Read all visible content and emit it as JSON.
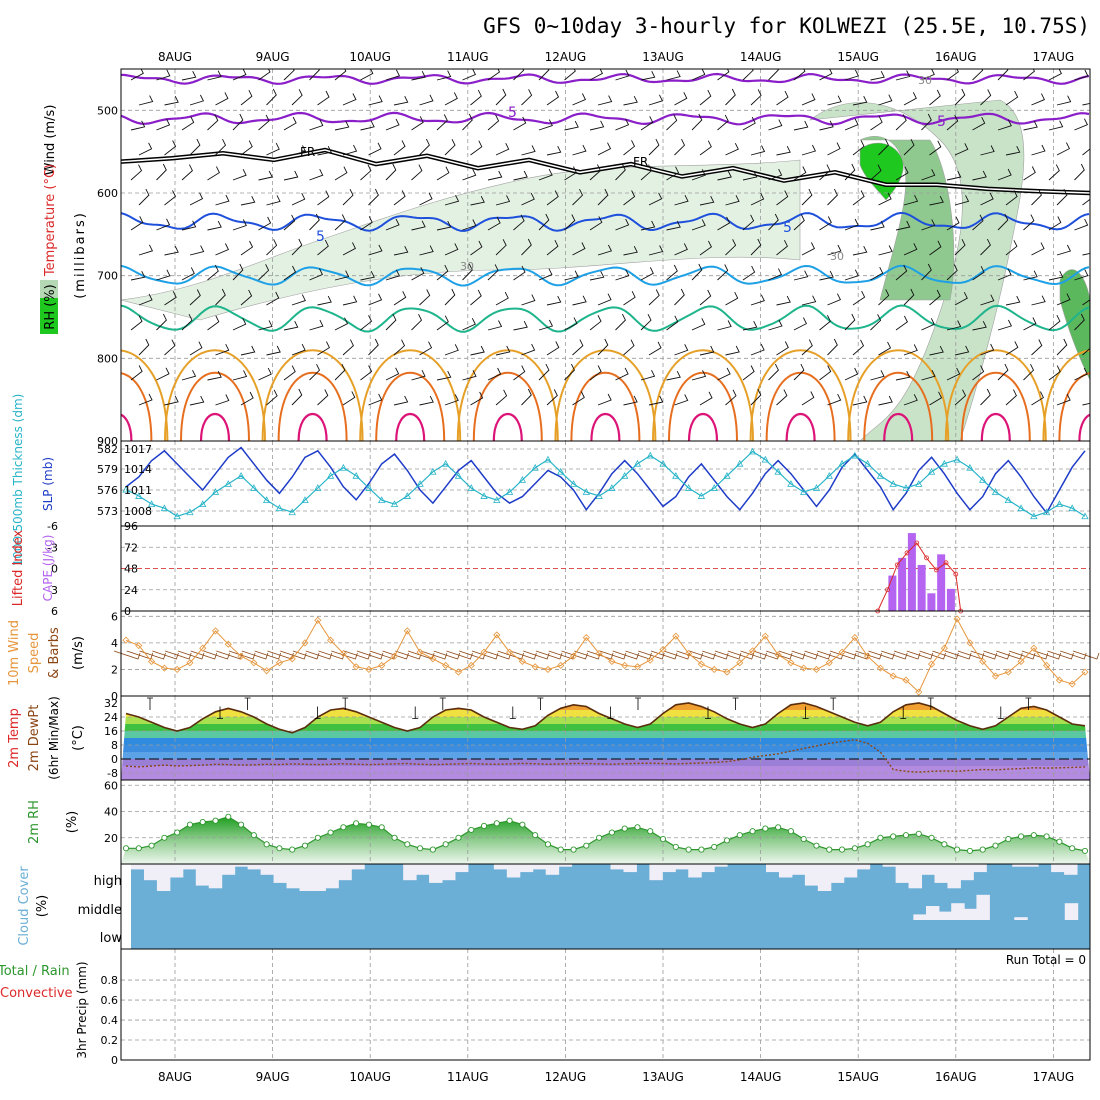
{
  "title": "GFS 0~10day 3-hourly for KOLWEZI (25.5E, 10.75S)",
  "dates": [
    "8AUG",
    "9AUG",
    "10AUG",
    "11AUG",
    "12AUG",
    "13AUG",
    "14AUG",
    "15AUG",
    "16AUG",
    "17AUG"
  ],
  "colors": {
    "rh_green": "#1ec81e",
    "wind_purple": "#8a1ec8",
    "temp_blue": "#1e50dc",
    "temp_cyan": "#1ea0e6",
    "temp_teal": "#1eb48c",
    "temp_orange": "#e6a028",
    "temp_darkorange": "#e66e1e",
    "temp_magenta": "#dc1478",
    "slp_blue": "#1e3cc8",
    "thick_cyan": "#28b4c8",
    "cape_purple": "#b464f0",
    "li_red": "#dc2828",
    "wind10_orange": "#e6963c",
    "rh2m_green": "#2d962d",
    "cloud_blue": "#6baed6",
    "cloud_white": "#f0eef6"
  },
  "labels": {
    "upper_wind": "Wind (m/s)",
    "upper_temp": "Temperature (°C)",
    "upper_rh": "RH (%)",
    "upper_mb": "(millibars)",
    "thick": "1000-500mb Thickness (dm)",
    "slp": "SLP (mb)",
    "li": "Lifted Index",
    "cape": "CAPE (J/kg)",
    "wind10_a": "10m Wind",
    "wind10_b": "Speed",
    "wind10_c": "& Barbs",
    "wind10_d": "(m/s)",
    "temp2m_a": "2m Temp",
    "temp2m_b": "2m DewPt",
    "temp2m_c": "(6hr Min/Max)",
    "temp2m_d": "(°C)",
    "rh2m_a": "2m RH",
    "rh2m_b": "(%)",
    "cloud_a": "Cloud Cover",
    "cloud_b": "(%)",
    "cloud_high": "high",
    "cloud_middle": "middle",
    "cloud_low": "low",
    "precip_a": "Total / Rain",
    "precip_b": "Convective",
    "precip_c": "3hr Precip (mm)",
    "run_total": "Run Total = 0",
    "contour_fr": "FR",
    "contour_5": "5",
    "contour_30": "30"
  },
  "chart_data": {
    "type": "line",
    "x_dates": [
      "8AUG",
      "9AUG",
      "10AUG",
      "11AUG",
      "12AUG",
      "13AUG",
      "14AUG",
      "15AUG",
      "16AUG",
      "17AUG"
    ],
    "panels": [
      {
        "name": "upper_air",
        "y_ticks": [
          "500",
          "600",
          "700",
          "800",
          "900"
        ],
        "ylim": [
          450,
          900
        ],
        "freezing_level_mb": [
          562,
          558,
          552,
          560,
          548,
          565,
          555,
          570,
          560,
          575,
          565,
          580,
          570,
          585,
          575,
          590,
          590,
          595,
          598,
          600
        ]
      },
      {
        "name": "slp_thickness",
        "y_ticks_slp": [
          "1017",
          "1014",
          "1011",
          "1008"
        ],
        "y_ticks_thickness": [
          "582",
          "579",
          "576",
          "573"
        ],
        "slp": [
          1011.5,
          1013,
          1015.5,
          1017,
          1015,
          1013,
          1011,
          1013.5,
          1016,
          1017.5,
          1015,
          1012.5,
          1010.5,
          1013,
          1016,
          1017,
          1014.5,
          1011.5,
          1009.5,
          1012,
          1015,
          1016.5,
          1014,
          1011,
          1009,
          1011.5,
          1014,
          1015.5,
          1013,
          1010.5,
          1009,
          1010,
          1012,
          1014,
          1013,
          1011,
          1008,
          1010.5,
          1013.5,
          1015.5,
          1013.5,
          1011,
          1008.5,
          1010,
          1013,
          1015,
          1012.5,
          1010,
          1008,
          1010.5,
          1013.5,
          1015.5,
          1013.5,
          1011,
          1008.5,
          1011,
          1014.5,
          1016.5,
          1014,
          1011.5,
          1008,
          1010.5,
          1014,
          1016,
          1013.5,
          1010.5,
          1008,
          1010,
          1013.5,
          1015.5,
          1013,
          1010,
          1007.5,
          1011,
          1014.5,
          1017
        ],
        "thickness": [
          576.8,
          576,
          575,
          574.5,
          573.5,
          574,
          575,
          576.5,
          577.5,
          578.5,
          577,
          575.5,
          574.5,
          574,
          575.5,
          577,
          578.5,
          579.5,
          578.5,
          577,
          575.5,
          575,
          576,
          577.5,
          579,
          580,
          578.5,
          577,
          576,
          575.5,
          576.5,
          578,
          579.5,
          580.5,
          579,
          577.5,
          576.5,
          576,
          577,
          578.5,
          580,
          581,
          580,
          578.5,
          577,
          576,
          577,
          578.5,
          580,
          581.5,
          580.5,
          579,
          577.5,
          576.5,
          577,
          578.5,
          580,
          581,
          580,
          578.5,
          577.5,
          577,
          577.5,
          579,
          580,
          580.5,
          579.5,
          578,
          576.5,
          575.5,
          574.5,
          573.5,
          574,
          575,
          574.5,
          573.5
        ]
      },
      {
        "name": "cape_li",
        "y_ticks_cape": [
          "96",
          "72",
          "48",
          "24",
          "0"
        ],
        "y_ticks_li": [
          "-6",
          "-3",
          "0",
          "3",
          "6"
        ],
        "cape_bars": [
          {
            "x": 7.35,
            "v": 40
          },
          {
            "x": 7.45,
            "v": 60
          },
          {
            "x": 7.55,
            "v": 88
          },
          {
            "x": 7.65,
            "v": 52
          },
          {
            "x": 7.75,
            "v": 20
          },
          {
            "x": 7.85,
            "v": 64
          },
          {
            "x": 7.95,
            "v": 25
          }
        ],
        "li_points": [
          {
            "x": 7.2,
            "v": 6
          },
          {
            "x": 7.3,
            "v": 3
          },
          {
            "x": 7.4,
            "v": -0.5
          },
          {
            "x": 7.5,
            "v": -2.2
          },
          {
            "x": 7.6,
            "v": -3.6
          },
          {
            "x": 7.7,
            "v": -1.5
          },
          {
            "x": 7.8,
            "v": 0.2
          },
          {
            "x": 7.9,
            "v": -0.8
          },
          {
            "x": 8.0,
            "v": 0.8
          },
          {
            "x": 8.05,
            "v": 6
          }
        ]
      },
      {
        "name": "wind10m",
        "y_ticks": [
          "6",
          "4",
          "2",
          "0"
        ],
        "ylim": [
          0,
          6
        ],
        "speed": [
          4.2,
          3.8,
          2.6,
          2.1,
          2,
          2.5,
          3.6,
          4.9,
          3.9,
          3,
          2.5,
          1.9,
          2.5,
          2.8,
          4,
          5.7,
          4.2,
          3.2,
          2.2,
          2,
          2.3,
          3,
          4.9,
          3.3,
          2.8,
          2.3,
          1.8,
          2.3,
          3.3,
          4.6,
          3.3,
          2.6,
          2.2,
          2,
          2.3,
          3,
          4.4,
          3.2,
          2.6,
          2.3,
          2.2,
          2.7,
          3.5,
          4.5,
          3.2,
          2.4,
          2,
          1.8,
          2.5,
          3.4,
          4.5,
          3.1,
          2.5,
          2.1,
          2,
          2.5,
          3.3,
          4.4,
          3,
          2.1,
          1.5,
          1.2,
          0.3,
          2.4,
          3.6,
          5.8,
          4,
          2.6,
          1.5,
          1.8,
          2.6,
          3.6,
          2.3,
          1.2,
          0.9,
          1.8
        ]
      },
      {
        "name": "temp2m",
        "y_ticks": [
          "32",
          "24",
          "16",
          "8",
          "0",
          "-8"
        ],
        "ylim": [
          -12,
          36
        ],
        "temp": [
          26,
          24,
          21,
          18,
          16,
          18,
          23,
          27,
          29,
          27,
          24,
          20,
          17,
          15,
          18,
          24,
          28,
          29,
          27,
          24,
          21,
          18,
          16,
          18,
          24,
          28,
          29,
          28,
          24,
          21,
          18,
          17,
          19,
          25,
          29,
          31,
          30,
          26,
          23,
          20,
          18,
          20,
          26,
          31,
          32,
          30,
          27,
          23,
          20,
          18,
          20,
          26,
          31,
          32,
          30,
          27,
          24,
          21,
          19,
          21,
          27,
          31,
          32,
          30,
          26,
          22,
          19,
          17,
          19,
          24,
          29,
          30,
          28,
          24,
          20,
          19
        ],
        "dewpoint": [
          -4,
          -4.5,
          -4,
          -3.5,
          -4,
          -3.8,
          -3.5,
          -3,
          -3.2,
          -3.5,
          -3.3,
          -3,
          -3.2,
          -2.8,
          -3,
          -3.2,
          -3,
          -2.7,
          -3,
          -3.2,
          -3,
          -2.8,
          -2.6,
          -3,
          -3.2,
          -3,
          -2.8,
          -2.6,
          -2.9,
          -3,
          -2.8,
          -2.5,
          -2.7,
          -3,
          -2.8,
          -2.6,
          -2.5,
          -2.8,
          -3,
          -2.7,
          -2.5,
          -2.4,
          -2.6,
          -2.8,
          -2.5,
          -2.3,
          -2,
          -1.5,
          -0.5,
          1,
          2,
          3,
          4.5,
          6,
          7.5,
          9,
          10,
          11,
          9,
          4,
          -6,
          -7,
          -7.5,
          -7,
          -6.8,
          -7,
          -6.5,
          -6,
          -6.2,
          -5.8,
          -5.5,
          -5,
          -5.2,
          -5,
          -4.8,
          -4.5
        ]
      },
      {
        "name": "rh2m",
        "y_ticks": [
          "60",
          "40",
          "20"
        ],
        "ylim": [
          0,
          64
        ],
        "rh": [
          12,
          12,
          14,
          20,
          24,
          30,
          32,
          33,
          36,
          30,
          22,
          15,
          12,
          11,
          14,
          20,
          24,
          28,
          31,
          30,
          28,
          20,
          15,
          12,
          11,
          15,
          20,
          26,
          29,
          31,
          33,
          30,
          22,
          15,
          11,
          11,
          14,
          20,
          24,
          27,
          28,
          25,
          19,
          13,
          11,
          11,
          13,
          18,
          22,
          25,
          27,
          28,
          25,
          19,
          14,
          11,
          11,
          12,
          15,
          20,
          21,
          22,
          23,
          20,
          15,
          11,
          10,
          11,
          14,
          19,
          21,
          22,
          21,
          17,
          12,
          10
        ]
      },
      {
        "name": "cloud_cover",
        "levels": [
          "high",
          "middle",
          "low"
        ],
        "high_cover": [
          0.2,
          0.6,
          1,
          0.5,
          0.2,
          0.8,
          0.9,
          0.4,
          0.1,
          0.2,
          0.4,
          0.7,
          0.9,
          1,
          1,
          0.9,
          0.6,
          0.2,
          0,
          0,
          0,
          0.6,
          0.4,
          0.7,
          0.6,
          0.3,
          0,
          0,
          0.2,
          0.5,
          0.3,
          0.2,
          0.4,
          0.1,
          0,
          0,
          0,
          0.2,
          0.3,
          0,
          0.6,
          0.3,
          0.2,
          0.5,
          0.3,
          0.1,
          0,
          0,
          0,
          0.3,
          0.5,
          0.4,
          0.8,
          1,
          0.7,
          0.5,
          0.2,
          0,
          0.1,
          0.7,
          0.9,
          0.4,
          0.7,
          0.9,
          0.6,
          0.3,
          0,
          0,
          0.1,
          0.1,
          0,
          0.3,
          0.4,
          0
        ],
        "middle_cover": [
          0,
          0,
          0,
          0,
          0,
          0,
          0,
          0,
          0,
          0,
          0,
          0,
          0,
          0,
          0,
          0,
          0,
          0,
          0,
          0,
          0,
          0,
          0,
          0,
          0,
          0,
          0,
          0,
          0,
          0,
          0,
          0,
          0,
          0,
          0,
          0,
          0,
          0,
          0,
          0,
          0,
          0,
          0,
          0,
          0,
          0,
          0,
          0,
          0,
          0,
          0,
          0,
          0,
          0,
          0,
          0,
          0,
          0,
          0,
          0,
          0,
          0,
          0.2,
          0.5,
          0.3,
          0.6,
          0.4,
          0.9,
          0,
          0,
          0.1,
          0,
          0,
          0,
          0.6,
          0
        ],
        "low_cover": []
      },
      {
        "name": "precip",
        "y_ticks": [
          "0.8",
          "0.6",
          "0.4",
          "0.2",
          "0"
        ],
        "ylim": [
          0,
          1
        ],
        "values": []
      }
    ]
  }
}
